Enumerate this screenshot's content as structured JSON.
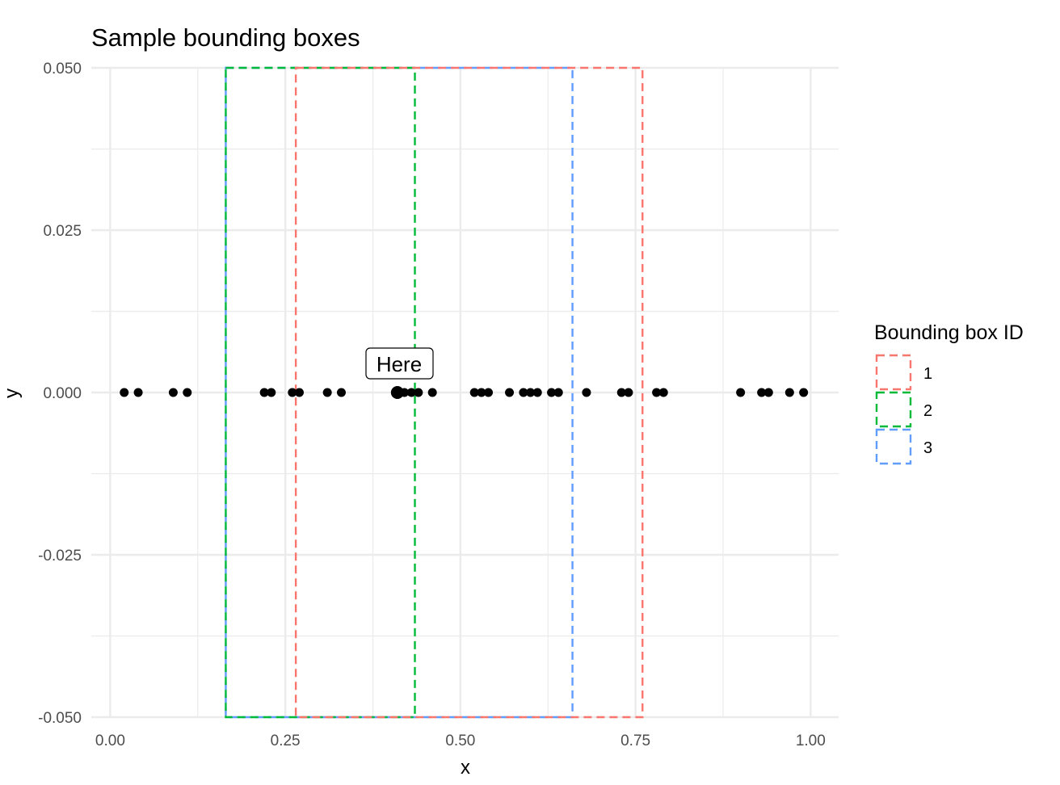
{
  "chart_data": {
    "type": "scatter",
    "title": "Sample bounding boxes",
    "xlabel": "x",
    "ylabel": "y",
    "xlim": [
      -0.027,
      1.04
    ],
    "ylim": [
      -0.05,
      0.05
    ],
    "x_ticks": [
      0,
      0.25,
      0.5,
      0.75,
      1
    ],
    "x_tick_labels": [
      "0.00",
      "0.25",
      "0.50",
      "0.75",
      "1.00"
    ],
    "y_ticks": [
      -0.05,
      -0.025,
      0,
      0.025,
      0.05
    ],
    "y_tick_labels": [
      "-0.050",
      "-0.025",
      "0.000",
      "0.025",
      "0.050"
    ],
    "grid": true,
    "points": {
      "color": "#000000",
      "x": [
        0.02,
        0.04,
        0.09,
        0.11,
        0.22,
        0.23,
        0.26,
        0.27,
        0.31,
        0.33,
        0.41,
        0.42,
        0.43,
        0.44,
        0.46,
        0.52,
        0.53,
        0.54,
        0.57,
        0.59,
        0.6,
        0.61,
        0.63,
        0.64,
        0.68,
        0.73,
        0.74,
        0.78,
        0.79,
        0.9,
        0.93,
        0.94,
        0.97,
        0.99
      ],
      "y": [
        0,
        0,
        0,
        0,
        0,
        0,
        0,
        0,
        0,
        0,
        0,
        0,
        0,
        0,
        0,
        0,
        0,
        0,
        0,
        0,
        0,
        0,
        0,
        0,
        0,
        0,
        0,
        0,
        0,
        0,
        0,
        0,
        0,
        0
      ]
    },
    "highlight": {
      "x": 0.41,
      "y": 0,
      "label": "Here"
    },
    "boxes": [
      {
        "id": "1",
        "color": "#F8766D",
        "xmin": 0.265,
        "xmax": 0.76,
        "ymin": -0.05,
        "ymax": 0.05
      },
      {
        "id": "2",
        "color": "#00BA38",
        "xmin": 0.165,
        "xmax": 0.435,
        "ymin": -0.05,
        "ymax": 0.05
      },
      {
        "id": "3",
        "color": "#619CFF",
        "xmin": 0.165,
        "xmax": 0.66,
        "ymin": -0.05,
        "ymax": 0.05
      }
    ],
    "legend": {
      "title": "Bounding box ID",
      "position": "right",
      "entries": [
        "1",
        "2",
        "3"
      ]
    }
  }
}
